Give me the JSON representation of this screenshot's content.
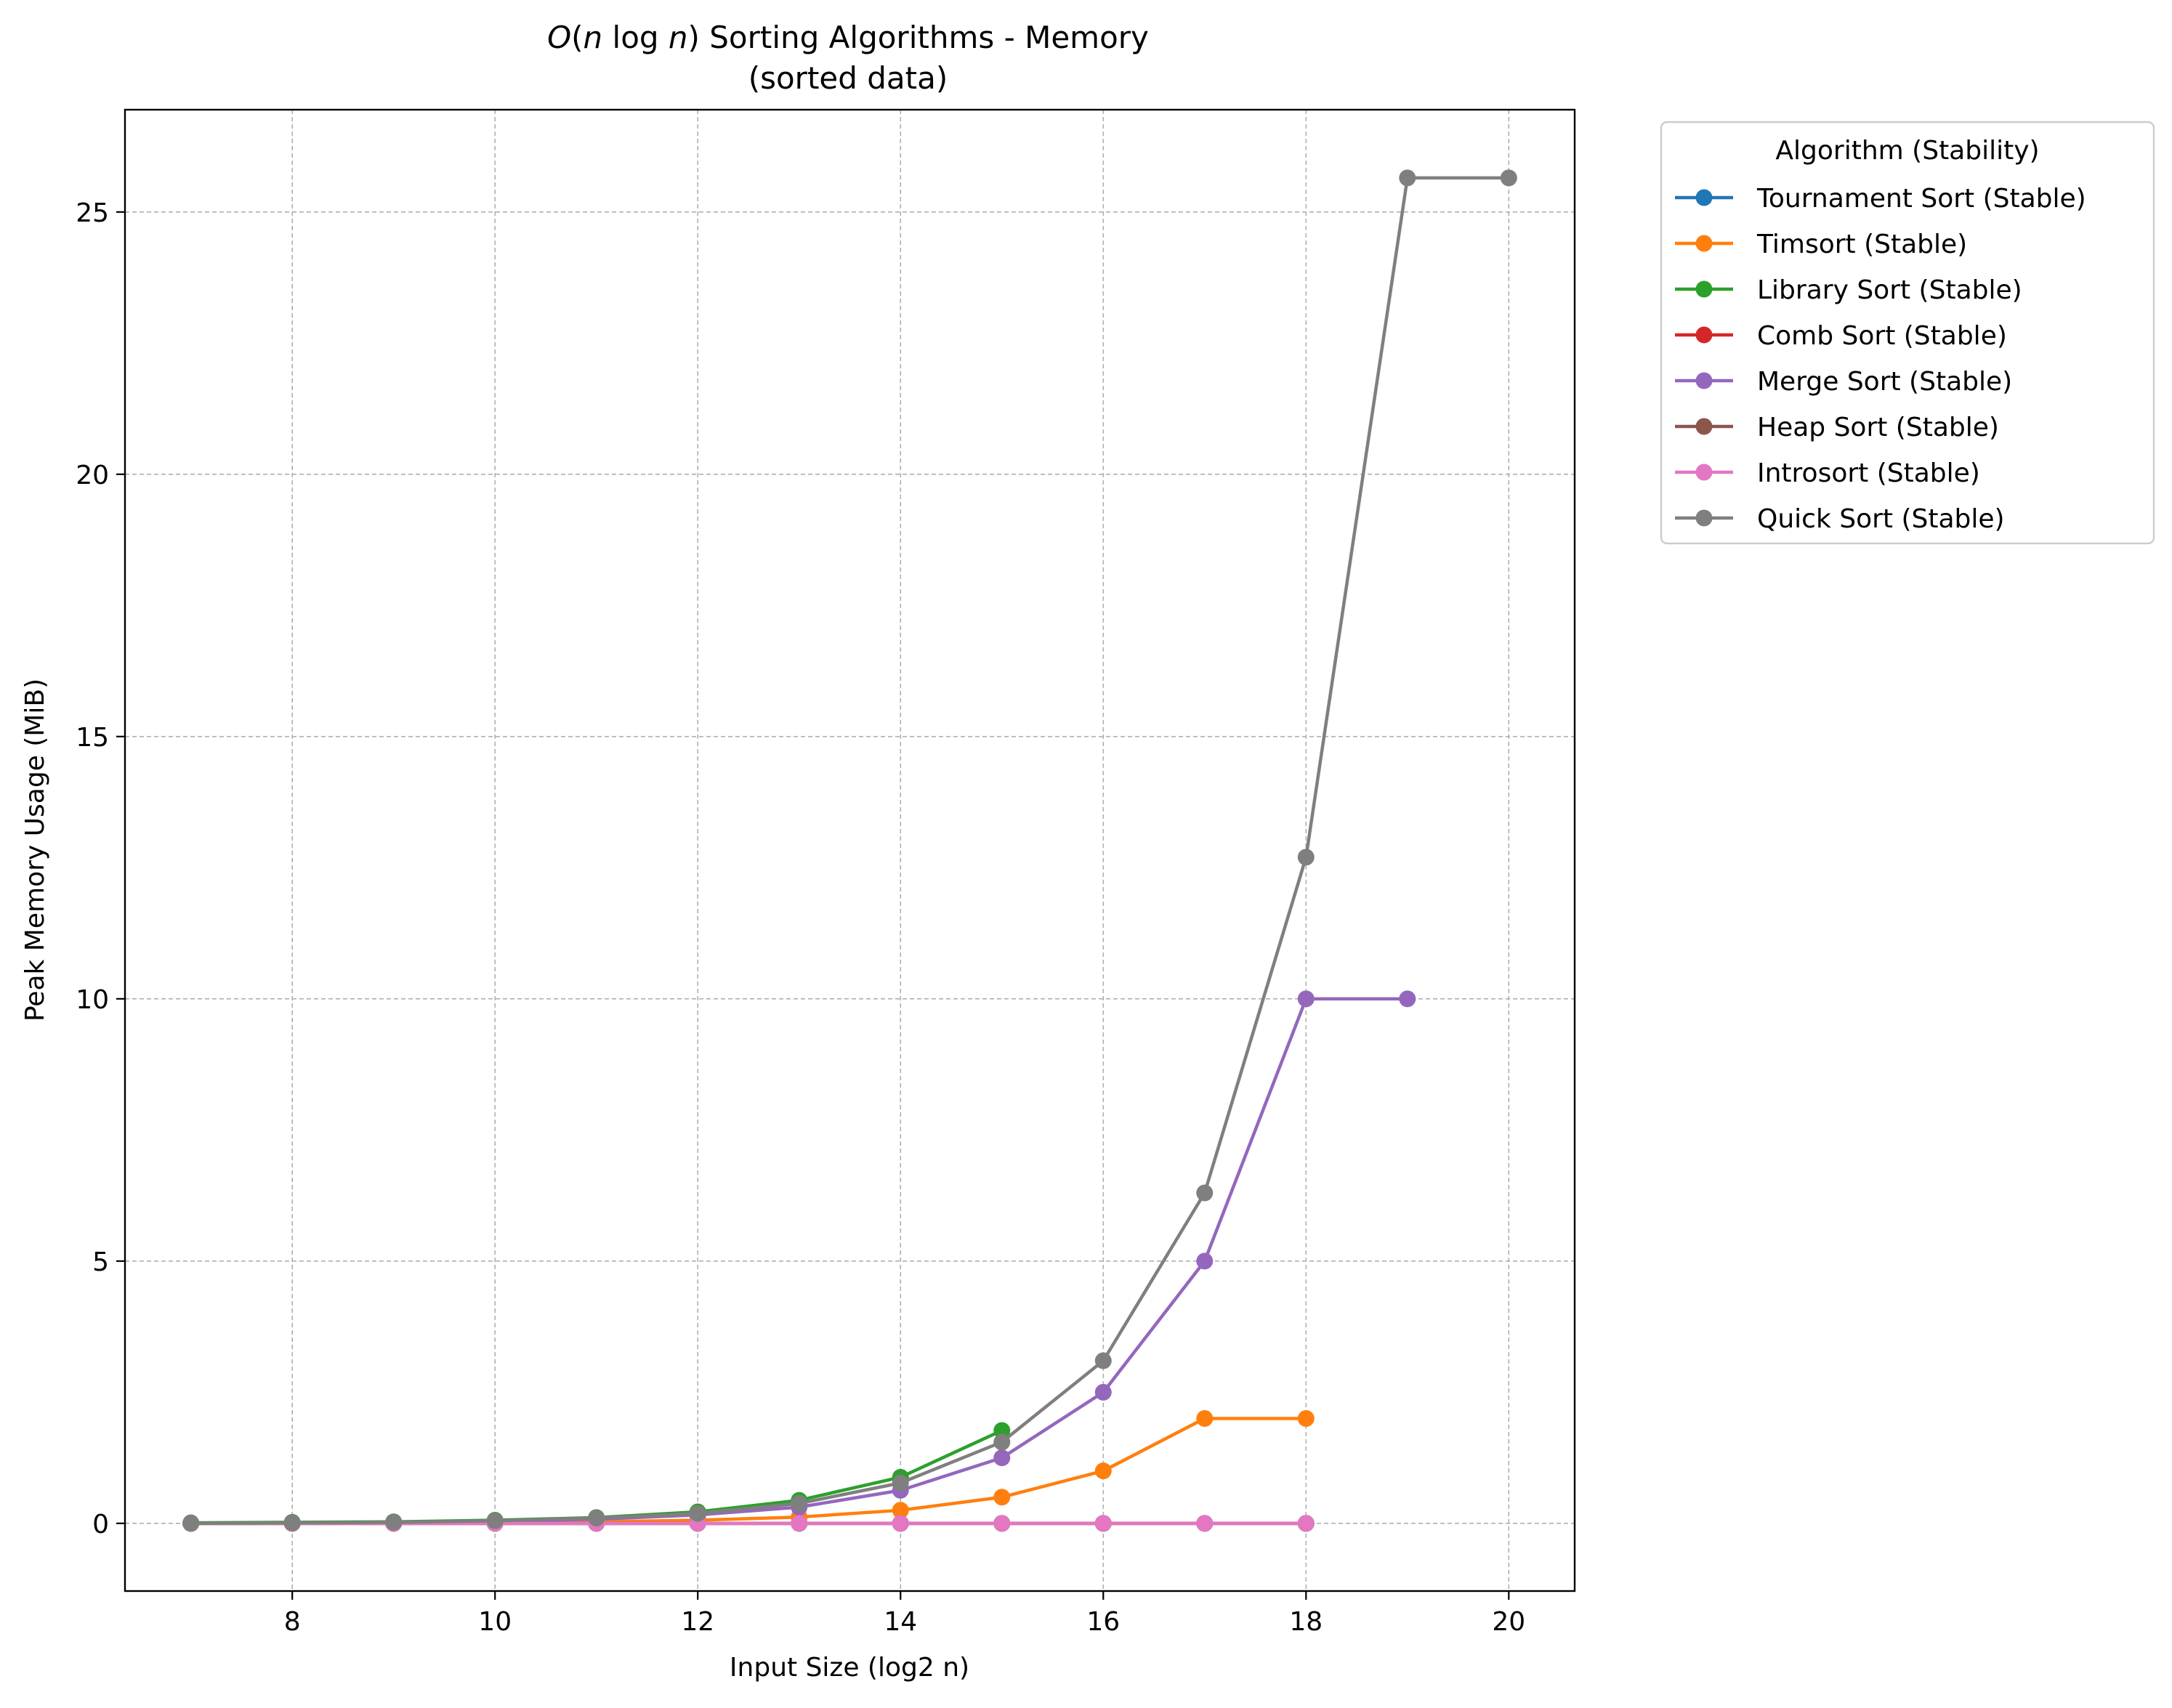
{
  "chart_data": {
    "type": "line",
    "title_prefix": "O",
    "title_mid_1": "(",
    "title_n1": "n",
    "title_log": " log ",
    "title_n2": "n",
    "title_mid_2": ")",
    "title_rest": " Sorting Algorithms - Memory",
    "subtitle": "(sorted data)",
    "xlabel": "Input Size (log2 n)",
    "ylabel": "Peak Memory Usage (MiB)",
    "xlim": [
      6.35,
      20.65
    ],
    "ylim": [
      -1.29,
      26.95
    ],
    "xticks": [
      8,
      10,
      12,
      14,
      16,
      18,
      20
    ],
    "yticks": [
      0,
      5,
      10,
      15,
      20,
      25
    ],
    "grid": true,
    "legend": {
      "title": "Algorithm (Stability)",
      "placement": "outside right, top"
    },
    "series": [
      {
        "name": "Tournament Sort (Stable)",
        "color": "#1f77b4",
        "x": [
          7,
          8,
          9,
          10,
          11,
          12,
          13,
          14,
          15,
          16,
          17,
          18
        ],
        "y": [
          0.0,
          0.0,
          0.0,
          0.0,
          0.0,
          0.0,
          0.0,
          0.0,
          0.0,
          0.0,
          0.0,
          0.0
        ]
      },
      {
        "name": "Timsort (Stable)",
        "color": "#ff7f0e",
        "x": [
          7,
          8,
          9,
          10,
          11,
          12,
          13,
          14,
          15,
          16,
          17,
          18
        ],
        "y": [
          0.0,
          0.0,
          0.01,
          0.02,
          0.03,
          0.06,
          0.12,
          0.25,
          0.5,
          1.0,
          2.0,
          2.0
        ]
      },
      {
        "name": "Library Sort (Stable)",
        "color": "#2ca02c",
        "x": [
          7,
          8,
          9,
          10,
          11,
          12,
          13,
          14,
          15
        ],
        "y": [
          0.01,
          0.02,
          0.03,
          0.06,
          0.11,
          0.22,
          0.44,
          0.88,
          1.77
        ]
      },
      {
        "name": "Comb Sort (Stable)",
        "color": "#d62728",
        "x": [
          7,
          8,
          9,
          10,
          11,
          12,
          13,
          14,
          15,
          16,
          17,
          18
        ],
        "y": [
          0.0,
          0.0,
          0.0,
          0.0,
          0.0,
          0.0,
          0.0,
          0.0,
          0.0,
          0.0,
          0.0,
          0.0
        ]
      },
      {
        "name": "Merge Sort (Stable)",
        "color": "#9467bd",
        "x": [
          7,
          8,
          9,
          10,
          11,
          12,
          13,
          14,
          15,
          16,
          17,
          18,
          19
        ],
        "y": [
          0.0,
          0.01,
          0.02,
          0.04,
          0.08,
          0.16,
          0.31,
          0.63,
          1.25,
          2.5,
          5.0,
          10.0,
          10.0
        ]
      },
      {
        "name": "Heap Sort (Stable)",
        "color": "#8c564b",
        "x": [
          7,
          8,
          9,
          10,
          11,
          12,
          13,
          14,
          15,
          16,
          17,
          18
        ],
        "y": [
          0.0,
          0.0,
          0.0,
          0.0,
          0.0,
          0.0,
          0.0,
          0.0,
          0.0,
          0.0,
          0.0,
          0.0
        ]
      },
      {
        "name": "Introsort (Stable)",
        "color": "#e377c2",
        "x": [
          7,
          8,
          9,
          10,
          11,
          12,
          13,
          14,
          15,
          16,
          17,
          18
        ],
        "y": [
          0.0,
          0.0,
          0.0,
          0.0,
          0.0,
          0.0,
          0.0,
          0.0,
          0.0,
          0.0,
          0.0,
          0.0
        ]
      },
      {
        "name": "Quick Sort (Stable)",
        "color": "#7f7f7f",
        "x": [
          7,
          8,
          9,
          10,
          11,
          12,
          13,
          14,
          15,
          16,
          17,
          18,
          19,
          20
        ],
        "y": [
          0.0,
          0.01,
          0.02,
          0.05,
          0.1,
          0.19,
          0.38,
          0.77,
          1.55,
          3.1,
          6.3,
          12.7,
          25.65,
          25.65
        ]
      }
    ]
  }
}
